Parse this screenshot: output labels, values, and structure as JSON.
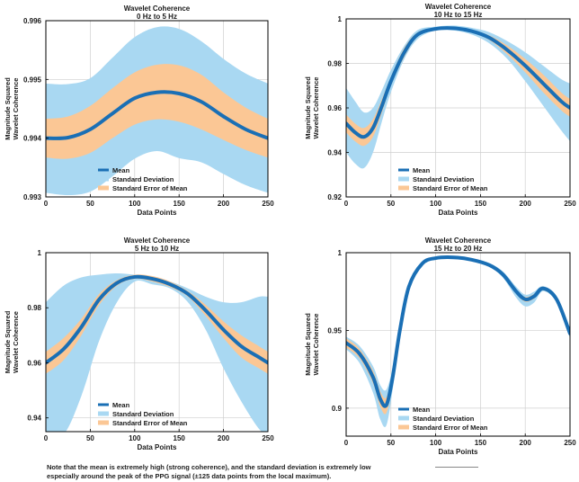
{
  "colors": {
    "mean": "#1a6fb5",
    "std_dev": "#a9d8f2",
    "std_err": "#fbc795",
    "grid": "#cfcfcf",
    "axis": "#000000",
    "text": "#1a1a1a"
  },
  "note": {
    "line1": "Note that the mean is extremely high (strong coherence), and the standard deviation is extremely low",
    "line2": "especially around the peak of the PPG signal (±125 data points from the local maximum)."
  },
  "chart_data": [
    {
      "type": "area",
      "title": "Wavelet Coherence",
      "subtitle": "0 Hz to 5 Hz",
      "xlabel": "Data Points",
      "ylabel_line1": "Magnitude Squared",
      "ylabel_line2": "Wavelet Coherence",
      "xlim": [
        0,
        250
      ],
      "ylim": [
        0.993,
        0.996
      ],
      "xticks": [
        0,
        50,
        100,
        150,
        200,
        250
      ],
      "yticks": [
        0.993,
        0.994,
        0.995,
        0.996
      ],
      "yticklabels": [
        "0.993",
        "0.994",
        "0.995",
        "0.996"
      ],
      "grid": true,
      "legend_position": "bottom-left",
      "legend": [
        "Mean",
        "Standard Deviation",
        "Standard Error of Mean"
      ],
      "x": [
        0,
        25,
        50,
        75,
        100,
        125,
        150,
        175,
        200,
        225,
        250
      ],
      "mean": [
        0.994,
        0.99401,
        0.99415,
        0.99442,
        0.99468,
        0.99478,
        0.99476,
        0.99462,
        0.99437,
        0.99415,
        0.994
      ],
      "se_upper": [
        0.99433,
        0.99437,
        0.99455,
        0.99485,
        0.99512,
        0.99525,
        0.99524,
        0.99508,
        0.99478,
        0.99452,
        0.99433
      ],
      "se_lower": [
        0.99367,
        0.99365,
        0.99375,
        0.994,
        0.99423,
        0.99432,
        0.99428,
        0.99415,
        0.99397,
        0.9938,
        0.99367
      ],
      "sd_upper": [
        0.99493,
        0.99492,
        0.99502,
        0.99537,
        0.99572,
        0.99589,
        0.99586,
        0.99565,
        0.99535,
        0.9951,
        0.99493
      ],
      "sd_lower": [
        0.99307,
        0.99303,
        0.99309,
        0.99335,
        0.99365,
        0.99378,
        0.99366,
        0.99359,
        0.99339,
        0.9932,
        0.99307
      ]
    },
    {
      "type": "area",
      "title": "Wavelet Coherence",
      "subtitle": "10 Hz to 15 Hz",
      "xlabel": "Data Points",
      "ylabel_line1": "Magnitude Squared",
      "ylabel_line2": "Wavelet Coherence",
      "xlim": [
        0,
        250
      ],
      "ylim": [
        0.92,
        1.0
      ],
      "xticks": [
        0,
        50,
        100,
        150,
        200,
        250
      ],
      "yticks": [
        0.92,
        0.94,
        0.96,
        0.98,
        1.0
      ],
      "yticklabels": [
        "0.92",
        "0.94",
        "0.96",
        "0.98",
        "1"
      ],
      "grid": true,
      "legend_position": "bottom-left",
      "legend": [
        "Mean",
        "Standard Deviation",
        "Standard Error of Mean"
      ],
      "x": [
        0,
        10,
        20,
        30,
        40,
        50,
        65,
        80,
        100,
        120,
        140,
        160,
        180,
        200,
        220,
        240,
        250
      ],
      "mean": [
        0.953,
        0.949,
        0.947,
        0.951,
        0.961,
        0.972,
        0.985,
        0.993,
        0.9955,
        0.9958,
        0.9945,
        0.9915,
        0.986,
        0.979,
        0.971,
        0.963,
        0.96
      ],
      "se_upper": [
        0.957,
        0.953,
        0.951,
        0.955,
        0.964,
        0.974,
        0.987,
        0.994,
        0.996,
        0.9962,
        0.995,
        0.9925,
        0.988,
        0.982,
        0.975,
        0.967,
        0.964
      ],
      "se_lower": [
        0.949,
        0.945,
        0.943,
        0.947,
        0.958,
        0.97,
        0.983,
        0.992,
        0.995,
        0.9954,
        0.994,
        0.9905,
        0.984,
        0.976,
        0.967,
        0.959,
        0.956
      ],
      "sd_upper": [
        0.969,
        0.963,
        0.958,
        0.96,
        0.968,
        0.977,
        0.988,
        0.995,
        0.9965,
        0.997,
        0.996,
        0.994,
        0.99,
        0.985,
        0.979,
        0.973,
        0.971
      ],
      "sd_lower": [
        0.94,
        0.935,
        0.933,
        0.94,
        0.954,
        0.967,
        0.982,
        0.991,
        0.9948,
        0.9948,
        0.993,
        0.989,
        0.982,
        0.972,
        0.961,
        0.95,
        0.945
      ]
    },
    {
      "type": "area",
      "title": "Wavelet Coherence",
      "subtitle": "5 Hz to 10 Hz",
      "xlabel": "Data Points",
      "ylabel_line1": "Magnitude Squared",
      "ylabel_line2": "Wavelet Coherence",
      "xlim": [
        0,
        250
      ],
      "ylim": [
        0.935,
        1.0
      ],
      "xticks": [
        0,
        50,
        100,
        150,
        200,
        250
      ],
      "yticks": [
        0.94,
        0.96,
        0.98,
        1.0
      ],
      "yticklabels": [
        "0.94",
        "0.96",
        "0.98",
        "1"
      ],
      "grid": true,
      "legend_position": "bottom-left",
      "legend": [
        "Mean",
        "Standard Deviation",
        "Standard Error of Mean"
      ],
      "x": [
        0,
        20,
        40,
        60,
        80,
        100,
        120,
        140,
        160,
        180,
        200,
        220,
        240,
        250
      ],
      "mean": [
        0.96,
        0.965,
        0.973,
        0.983,
        0.989,
        0.9912,
        0.9905,
        0.9885,
        0.985,
        0.979,
        0.972,
        0.966,
        0.962,
        0.96
      ],
      "se_upper": [
        0.964,
        0.969,
        0.976,
        0.985,
        0.99,
        0.992,
        0.9915,
        0.9895,
        0.986,
        0.981,
        0.975,
        0.97,
        0.966,
        0.964
      ],
      "se_lower": [
        0.956,
        0.961,
        0.97,
        0.981,
        0.988,
        0.9905,
        0.9895,
        0.9875,
        0.984,
        0.977,
        0.969,
        0.962,
        0.958,
        0.956
      ],
      "sd_upper": [
        0.982,
        0.988,
        0.991,
        0.992,
        0.9925,
        0.992,
        0.991,
        0.9895,
        0.987,
        0.984,
        0.982,
        0.982,
        0.984,
        0.984
      ],
      "sd_lower": [
        0.934,
        0.934,
        0.948,
        0.968,
        0.982,
        0.9895,
        0.9885,
        0.987,
        0.982,
        0.972,
        0.958,
        0.946,
        0.936,
        0.934
      ]
    },
    {
      "type": "area",
      "title": "Wavelet Coherence",
      "subtitle": "15 Hz to 20 Hz",
      "xlabel": "Data Points",
      "ylabel_line1": "Magnitude Squared",
      "ylabel_line2": "Wavelet Coherence",
      "xlim": [
        0,
        250
      ],
      "ylim": [
        0.882,
        1.0
      ],
      "xticks": [
        0,
        50,
        100,
        150,
        200,
        250
      ],
      "yticks": [
        0.9,
        0.95,
        1.0
      ],
      "yticklabels": [
        "0.9",
        "0.95",
        "1"
      ],
      "grid": true,
      "legend_position": "bottom-left",
      "legend": [
        "Mean",
        "Standard Deviation",
        "Standard Error of Mean"
      ],
      "x": [
        0,
        15,
        30,
        38,
        45,
        52,
        60,
        70,
        85,
        100,
        120,
        140,
        160,
        175,
        190,
        200,
        210,
        220,
        235,
        250
      ],
      "mean": [
        0.942,
        0.935,
        0.92,
        0.906,
        0.902,
        0.92,
        0.95,
        0.978,
        0.993,
        0.9965,
        0.997,
        0.9955,
        0.992,
        0.986,
        0.975,
        0.97,
        0.972,
        0.977,
        0.97,
        0.948
      ],
      "se_upper": [
        0.945,
        0.938,
        0.924,
        0.911,
        0.907,
        0.924,
        0.953,
        0.98,
        0.994,
        0.997,
        0.9975,
        0.996,
        0.9928,
        0.9872,
        0.9765,
        0.9715,
        0.9735,
        0.9782,
        0.9715,
        0.95
      ],
      "se_lower": [
        0.939,
        0.932,
        0.916,
        0.901,
        0.897,
        0.916,
        0.947,
        0.976,
        0.992,
        0.996,
        0.9965,
        0.995,
        0.9912,
        0.9848,
        0.9735,
        0.9685,
        0.9705,
        0.9758,
        0.9685,
        0.946
      ],
      "sd_upper": [
        0.946,
        0.94,
        0.927,
        0.915,
        0.912,
        0.927,
        0.955,
        0.981,
        0.9945,
        0.9972,
        0.9978,
        0.9964,
        0.9932,
        0.988,
        0.978,
        0.973,
        0.975,
        0.9785,
        0.972,
        0.951
      ],
      "sd_lower": [
        0.938,
        0.929,
        0.91,
        0.893,
        0.889,
        0.912,
        0.945,
        0.975,
        0.9915,
        0.9958,
        0.9962,
        0.9946,
        0.9908,
        0.984,
        0.971,
        0.9655,
        0.968,
        0.9752,
        0.968,
        0.945
      ]
    }
  ]
}
